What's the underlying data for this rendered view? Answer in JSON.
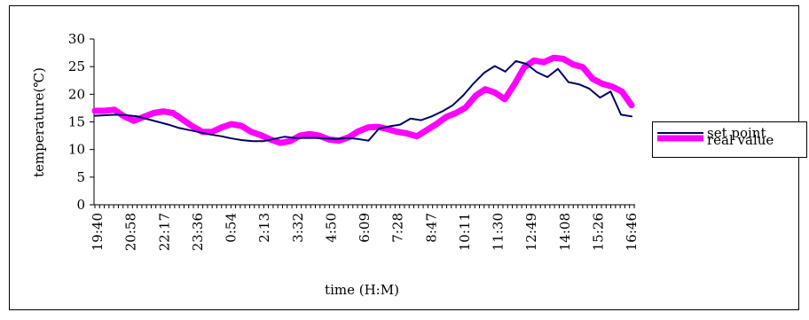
{
  "chart_data": {
    "type": "line",
    "title": "",
    "xlabel": "time (H:M)",
    "ylabel": "temperature(℃)",
    "ylim": [
      0,
      30
    ],
    "yticks": [
      0,
      5,
      10,
      15,
      20,
      25,
      30
    ],
    "x_tick_labels": [
      "19:40",
      "20:58",
      "22:17",
      "23:36",
      "0:54",
      "2:13",
      "3:32",
      "4:50",
      "6:09",
      "7:28",
      "8:47",
      "10:11",
      "11:30",
      "12:49",
      "14:08",
      "15:26",
      "16:46"
    ],
    "legend": "right",
    "grid": false,
    "series": [
      {
        "name": "set point",
        "color": "#000066",
        "values": [
          16.1,
          16.2,
          16.3,
          16.2,
          16.0,
          15.5,
          15.0,
          14.5,
          13.9,
          13.5,
          13.1,
          12.7,
          12.4,
          12.0,
          11.7,
          11.5,
          11.5,
          11.9,
          12.3,
          12.1,
          12.1,
          12.1,
          12.0,
          11.9,
          12.1,
          11.9,
          11.6,
          13.8,
          14.2,
          14.5,
          15.6,
          15.3,
          16.0,
          16.9,
          18.0,
          19.8,
          22.0,
          23.9,
          25.1,
          24.1,
          26.0,
          25.5,
          24.0,
          23.1,
          24.6,
          22.2,
          21.8,
          21.0,
          19.4,
          20.5,
          16.3,
          16.0
        ]
      },
      {
        "name": "real value",
        "color": "#ff00ff",
        "values": [
          17.0,
          17.0,
          17.2,
          16.0,
          15.2,
          15.9,
          16.6,
          16.9,
          16.6,
          15.4,
          14.2,
          13.2,
          13.2,
          14.0,
          14.6,
          14.3,
          13.2,
          12.6,
          11.8,
          11.2,
          11.5,
          12.5,
          12.8,
          12.5,
          11.8,
          11.6,
          12.2,
          13.3,
          14.0,
          14.1,
          13.7,
          13.2,
          12.9,
          12.4,
          13.5,
          14.6,
          15.9,
          16.6,
          17.6,
          19.7,
          20.9,
          20.3,
          19.1,
          21.8,
          24.9,
          26.1,
          25.8,
          26.6,
          26.4,
          25.4,
          24.9,
          22.8,
          21.9,
          21.4,
          20.5,
          18.0
        ]
      }
    ]
  }
}
